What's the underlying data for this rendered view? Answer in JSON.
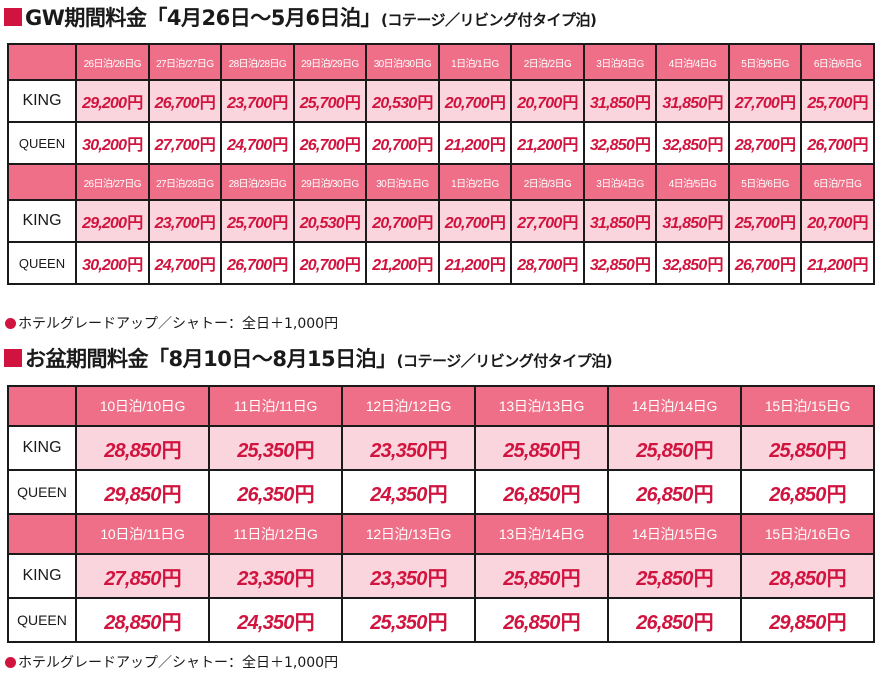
{
  "gw": {
    "title_main": "GW期間料金「4月26日〜5月6日泊」",
    "title_sub": "(コテージ／リビング付タイプ泊)",
    "blocks": [
      {
        "headers": [
          "26日泊/26日G",
          "27日泊/27日G",
          "28日泊/28日G",
          "29日泊/29日G",
          "30日泊/30日G",
          "1日泊/1日G",
          "2日泊/2日G",
          "3日泊/3日G",
          "4日泊/4日G",
          "5日泊/5日G",
          "6日泊/6日G"
        ],
        "king": [
          "29,200",
          "26,700",
          "23,700",
          "25,700",
          "20,530",
          "20,700",
          "20,700",
          "31,850",
          "31,850",
          "27,700",
          "25,700"
        ],
        "queen": [
          "30,200",
          "27,700",
          "24,700",
          "26,700",
          "20,700",
          "21,200",
          "21,200",
          "32,850",
          "32,850",
          "28,700",
          "26,700"
        ]
      },
      {
        "headers": [
          "26日泊/27日G",
          "27日泊/28日G",
          "28日泊/29日G",
          "29日泊/30日G",
          "30日泊/1日G",
          "1日泊/2日G",
          "2日泊/3日G",
          "3日泊/4日G",
          "4日泊/5日G",
          "5日泊/6日G",
          "6日泊/7日G"
        ],
        "king": [
          "29,200",
          "23,700",
          "25,700",
          "20,530",
          "20,700",
          "20,700",
          "27,700",
          "31,850",
          "31,850",
          "25,700",
          "20,700"
        ],
        "queen": [
          "30,200",
          "24,700",
          "26,700",
          "20,700",
          "21,200",
          "21,200",
          "28,700",
          "32,850",
          "32,850",
          "26,700",
          "21,200"
        ]
      }
    ],
    "note": "ホテルグレードアップ／シャトー：全日＋1,000円"
  },
  "obon": {
    "title_main": "お盆期間料金「8月10日〜8月15日泊」",
    "title_sub": "(コテージ／リビング付タイプ泊)",
    "blocks": [
      {
        "headers": [
          "10日泊/10日G",
          "11日泊/11日G",
          "12日泊/12日G",
          "13日泊/13日G",
          "14日泊/14日G",
          "15日泊/15日G"
        ],
        "king": [
          "28,850",
          "25,350",
          "23,350",
          "25,850",
          "25,850",
          "25,850"
        ],
        "queen": [
          "29,850",
          "26,350",
          "24,350",
          "26,850",
          "26,850",
          "26,850"
        ]
      },
      {
        "headers": [
          "10日泊/11日G",
          "11日泊/12日G",
          "12日泊/13日G",
          "13日泊/14日G",
          "14日泊/15日G",
          "15日泊/16日G"
        ],
        "king": [
          "27,850",
          "23,350",
          "23,350",
          "25,850",
          "25,850",
          "28,850"
        ],
        "queen": [
          "28,850",
          "24,350",
          "25,350",
          "26,850",
          "26,850",
          "29,850"
        ]
      }
    ],
    "note": "ホテルグレードアップ／シャトー：全日＋1,000円"
  },
  "labels": {
    "king": "KING",
    "queen": "QUEEN",
    "yen": "円"
  },
  "colors": {
    "accent": "#d1143f",
    "header_bg": "#ee6f87",
    "king_row_bg": "#fbd5dd",
    "border": "#1a1a1a"
  }
}
